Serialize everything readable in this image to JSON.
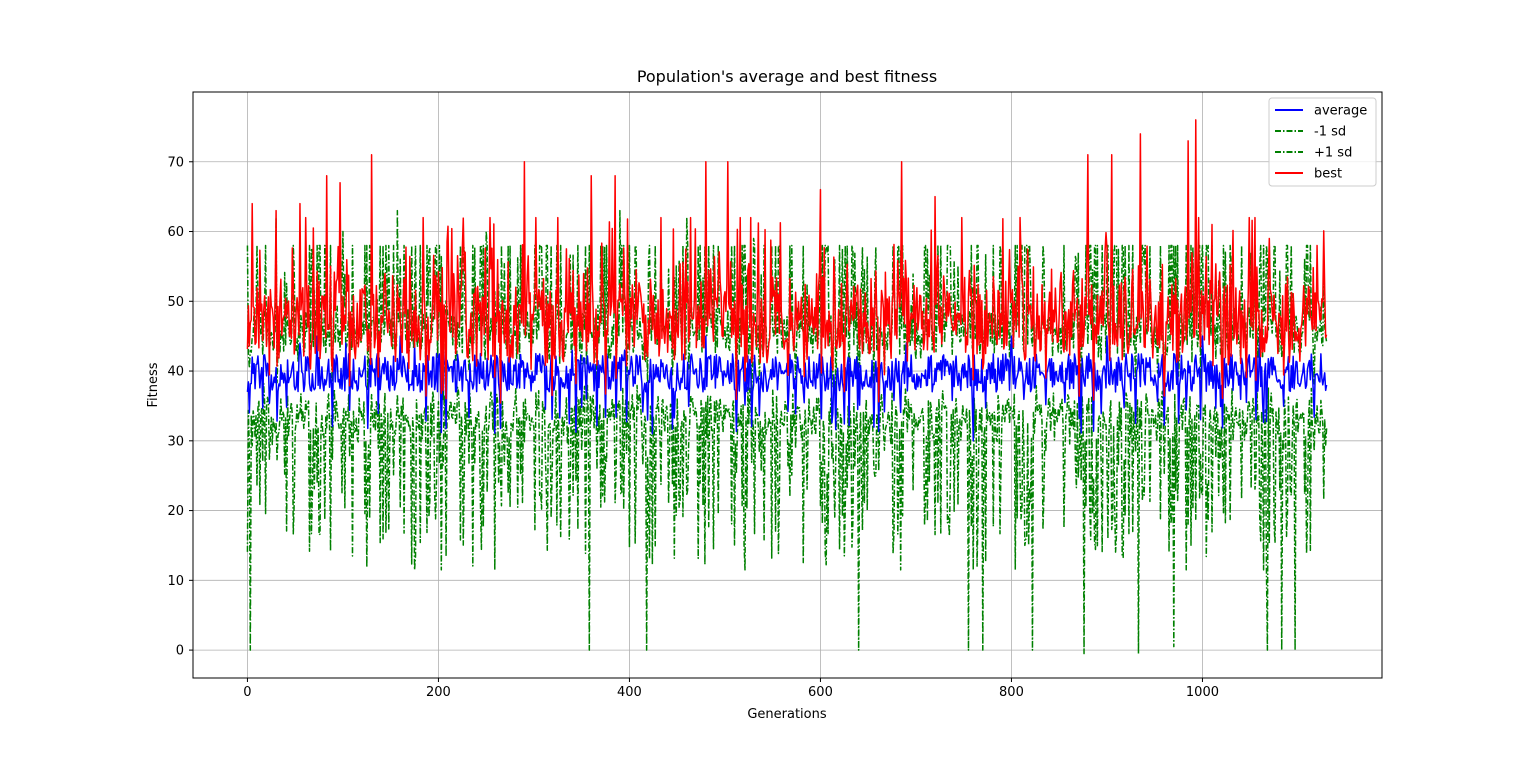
{
  "chart_data": {
    "type": "line",
    "title": "Population's average and best fitness",
    "xlabel": "Generations",
    "ylabel": "Fitness",
    "xlim": [
      -57,
      1188
    ],
    "ylim": [
      -4,
      80
    ],
    "xticks": [
      0,
      200,
      400,
      600,
      800,
      1000
    ],
    "yticks": [
      0,
      10,
      20,
      30,
      40,
      50,
      60,
      70
    ],
    "grid": true,
    "legend_position": "top-right",
    "generations": 1131,
    "series": [
      {
        "name": "average",
        "color": "#0000ff",
        "style": "solid",
        "typical_range": [
          30,
          46
        ],
        "peaks": [
          [
            2,
            34
          ],
          [
            5,
            42
          ],
          [
            55,
            44
          ],
          [
            73,
            45
          ],
          [
            103,
            44
          ],
          [
            160,
            45
          ],
          [
            175,
            44
          ],
          [
            205,
            44
          ],
          [
            275,
            42
          ],
          [
            340,
            43
          ],
          [
            360,
            40
          ],
          [
            395,
            43
          ],
          [
            480,
            45
          ],
          [
            560,
            40
          ],
          [
            690,
            44
          ],
          [
            760,
            30
          ],
          [
            800,
            45
          ],
          [
            900,
            45
          ],
          [
            1000,
            45
          ],
          [
            1060,
            46
          ],
          [
            1130,
            38
          ]
        ]
      },
      {
        "name": "-1 sd",
        "color": "#008000",
        "style": "dashdot",
        "typical_range": [
          12,
          40
        ],
        "deep_dips": [
          [
            3,
            0
          ],
          [
            358,
            0
          ],
          [
            418,
            0
          ],
          [
            640,
            0
          ],
          [
            755,
            0
          ],
          [
            770,
            0
          ],
          [
            822,
            0
          ],
          [
            876,
            -0.5
          ],
          [
            933,
            -0.5
          ],
          [
            970,
            0.5
          ],
          [
            1068,
            0
          ],
          [
            1083,
            0
          ],
          [
            1097,
            0
          ]
        ]
      },
      {
        "name": "+1 sd",
        "color": "#008000",
        "style": "dashdot",
        "typical_range": [
          42,
          63
        ],
        "peaks": [
          [
            30,
            62
          ],
          [
            100,
            60
          ],
          [
            157,
            63
          ],
          [
            250,
            60
          ],
          [
            390,
            63
          ],
          [
            460,
            62
          ],
          [
            530,
            59
          ],
          [
            870,
            57
          ],
          [
            940,
            58
          ],
          [
            1030,
            55
          ]
        ]
      },
      {
        "name": "best",
        "color": "#ff0000",
        "style": "solid",
        "typical_range": [
          37,
          58
        ],
        "peaks": [
          [
            5,
            64
          ],
          [
            30,
            63
          ],
          [
            55,
            64
          ],
          [
            83,
            68
          ],
          [
            97,
            67
          ],
          [
            130,
            71
          ],
          [
            290,
            70
          ],
          [
            360,
            68
          ],
          [
            385,
            68
          ],
          [
            480,
            70
          ],
          [
            503,
            70
          ],
          [
            600,
            66
          ],
          [
            685,
            70
          ],
          [
            720,
            65
          ],
          [
            880,
            71
          ],
          [
            905,
            71
          ],
          [
            935,
            74
          ],
          [
            985,
            73
          ],
          [
            993,
            76
          ],
          [
            1010,
            61
          ],
          [
            1070,
            59
          ],
          [
            1120,
            58
          ]
        ]
      }
    ]
  }
}
